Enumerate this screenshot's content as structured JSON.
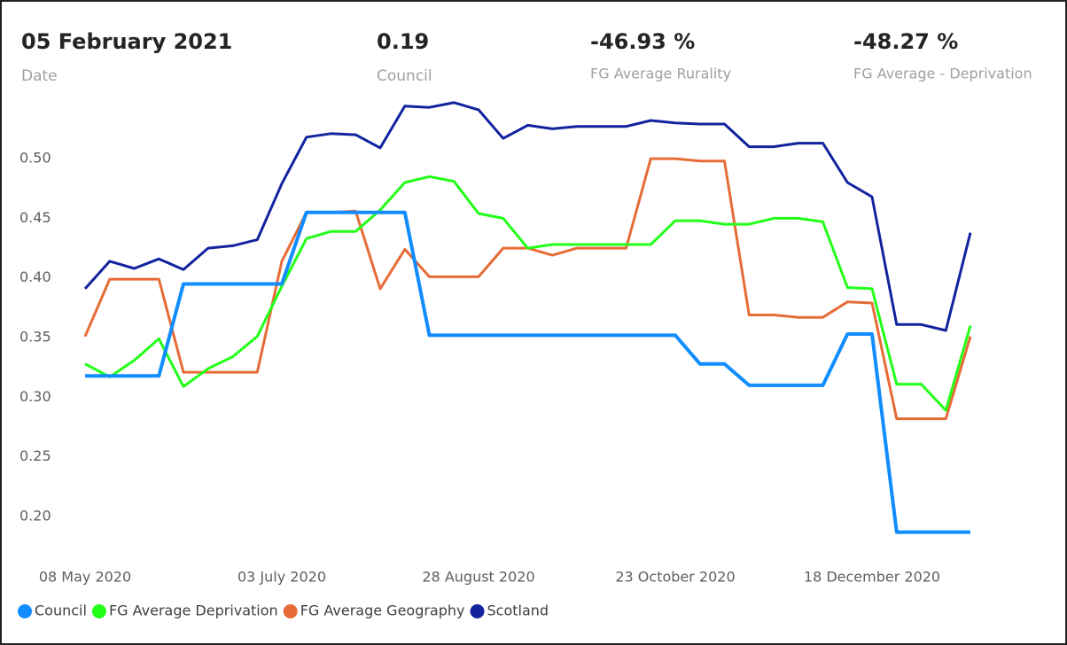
{
  "cards": [
    {
      "value": "05 February 2021",
      "label": "Date"
    },
    {
      "value": "0.19",
      "label": "Council"
    },
    {
      "value": "-46.93 %",
      "label": "FG Average Rurality"
    },
    {
      "value": "-48.27 %",
      "label": "FG Average - Deprivation"
    }
  ],
  "chart_data": {
    "type": "line",
    "categories": [
      "08 May 2020",
      null,
      null,
      null,
      null,
      null,
      null,
      null,
      "03 July 2020",
      null,
      null,
      null,
      null,
      null,
      null,
      null,
      "28 August 2020",
      null,
      null,
      null,
      null,
      null,
      null,
      null,
      "23 October 2020",
      null,
      null,
      null,
      null,
      null,
      null,
      null,
      "18 December 2020",
      null,
      null,
      null,
      null
    ],
    "ylim": [
      0.18,
      0.555
    ],
    "yticks": [
      {
        "value": 0.2,
        "label": "0.20"
      },
      {
        "value": 0.25,
        "label": "0.25"
      },
      {
        "value": 0.3,
        "label": "0.30"
      },
      {
        "value": 0.35,
        "label": "0.35"
      },
      {
        "value": 0.4,
        "label": "0.40"
      },
      {
        "value": 0.45,
        "label": "0.45"
      },
      {
        "value": 0.5,
        "label": "0.50"
      }
    ],
    "grid": false,
    "legend": "bottom-left",
    "series": [
      {
        "name": "Council",
        "color": "#118dff",
        "values": [
          0.318,
          0.318,
          0.318,
          0.318,
          0.395,
          0.395,
          0.395,
          0.395,
          0.395,
          0.455,
          0.455,
          0.455,
          0.455,
          0.455,
          0.352,
          0.352,
          0.352,
          0.352,
          0.352,
          0.352,
          0.352,
          0.352,
          0.352,
          0.352,
          0.352,
          0.328,
          0.328,
          0.31,
          0.31,
          0.31,
          0.31,
          0.353,
          0.353,
          0.187,
          0.187,
          0.187,
          0.187
        ]
      },
      {
        "name": "FG Average Deprivation",
        "color": "#22ff18",
        "values": [
          0.328,
          0.317,
          0.331,
          0.349,
          0.309,
          0.324,
          0.334,
          0.351,
          0.393,
          0.433,
          0.439,
          0.439,
          0.457,
          0.48,
          0.485,
          0.481,
          0.454,
          0.45,
          0.425,
          0.428,
          0.428,
          0.428,
          0.428,
          0.428,
          0.448,
          0.448,
          0.445,
          0.445,
          0.45,
          0.45,
          0.447,
          0.392,
          0.391,
          0.311,
          0.311,
          0.289,
          0.36
        ]
      },
      {
        "name": "FG Average Geography",
        "color": "#e66c37",
        "values": [
          0.351,
          0.399,
          0.399,
          0.399,
          0.321,
          0.321,
          0.321,
          0.321,
          0.414,
          0.455,
          0.455,
          0.456,
          0.391,
          0.424,
          0.401,
          0.401,
          0.401,
          0.425,
          0.425,
          0.419,
          0.425,
          0.425,
          0.425,
          0.5,
          0.5,
          0.498,
          0.498,
          0.369,
          0.369,
          0.367,
          0.367,
          0.38,
          0.379,
          0.282,
          0.282,
          0.282,
          0.351
        ]
      },
      {
        "name": "Scotland",
        "color": "#12239e",
        "values": [
          0.391,
          0.414,
          0.408,
          0.416,
          0.407,
          0.425,
          0.427,
          0.432,
          0.479,
          0.518,
          0.521,
          0.52,
          0.509,
          0.544,
          0.543,
          0.547,
          0.541,
          0.517,
          0.528,
          0.525,
          0.527,
          0.527,
          0.527,
          0.532,
          0.53,
          0.529,
          0.529,
          0.51,
          0.51,
          0.513,
          0.513,
          0.48,
          0.468,
          0.361,
          0.361,
          0.356,
          0.438
        ]
      }
    ]
  }
}
